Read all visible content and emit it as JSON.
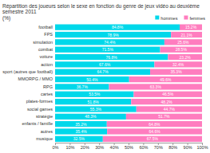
{
  "chart_data": {
    "type": "bar",
    "orientation": "horizontal",
    "stacked": true,
    "title": "Répartition des joueurs selon le sexe en fonction du genre de jeux vidéo au deuxième semestre 2011",
    "subtitle": "(%)",
    "categories": [
      "football",
      "FPS",
      "simulation",
      "combat",
      "voiture",
      "action",
      "sport (autres que football)",
      "MMORPG / MMO",
      "RPG",
      "cartes",
      "plates-formes",
      "social games",
      "stratégie",
      "enfants / famille",
      "autres",
      "musique"
    ],
    "series": [
      {
        "name": "hommes",
        "color": "#00D8EA",
        "values": [
          84.8,
          78.9,
          74.4,
          71.5,
          76.8,
          67.6,
          64.7,
          50.4,
          36.7,
          53.5,
          51.8,
          55.3,
          48.3,
          35.2,
          35.4,
          32.5
        ],
        "value_labels": [
          "84.8%",
          "78.9%",
          "74.4%",
          "71.5%",
          "76.8%",
          "67.6%",
          "64.7%",
          "50.4%",
          "36.7%",
          "53.5%",
          "51.8%",
          "55.3%",
          "48.3%",
          "35.2%",
          "35.4%",
          "32.5%"
        ]
      },
      {
        "name": "femmes",
        "color": "#FF7DBF",
        "values": [
          15.2,
          21.1,
          25.6,
          28.5,
          23.2,
          32.4,
          35.3,
          49.6,
          63.3,
          46.5,
          48.2,
          44.7,
          51.7,
          64.8,
          64.6,
          67.5
        ],
        "value_labels": [
          "15.2%",
          "21.1%",
          "25.6%",
          "28.5%",
          "23.2%",
          "32.4%",
          "35.3%",
          "49.6%",
          "63.3%",
          "46.5%",
          "48.2%",
          "44.7%",
          "51.7%",
          "64.8%",
          "64.6%",
          "67.5%"
        ]
      }
    ],
    "xlim": [
      0,
      100
    ],
    "xticks": [
      {
        "value": 0,
        "label": "0%"
      },
      {
        "value": 10,
        "label": "10%"
      },
      {
        "value": 20,
        "label": "20%"
      },
      {
        "value": 30,
        "label": "30%"
      },
      {
        "value": 40,
        "label": "40%"
      },
      {
        "value": 50,
        "label": "50%"
      },
      {
        "value": 60,
        "label": "60%"
      },
      {
        "value": 70,
        "label": "70%"
      },
      {
        "value": 80,
        "label": "80%"
      },
      {
        "value": 90,
        "label": "90%"
      },
      {
        "value": 100,
        "label": "100%"
      }
    ],
    "data_labels": true,
    "legend": "top",
    "grid": false
  }
}
